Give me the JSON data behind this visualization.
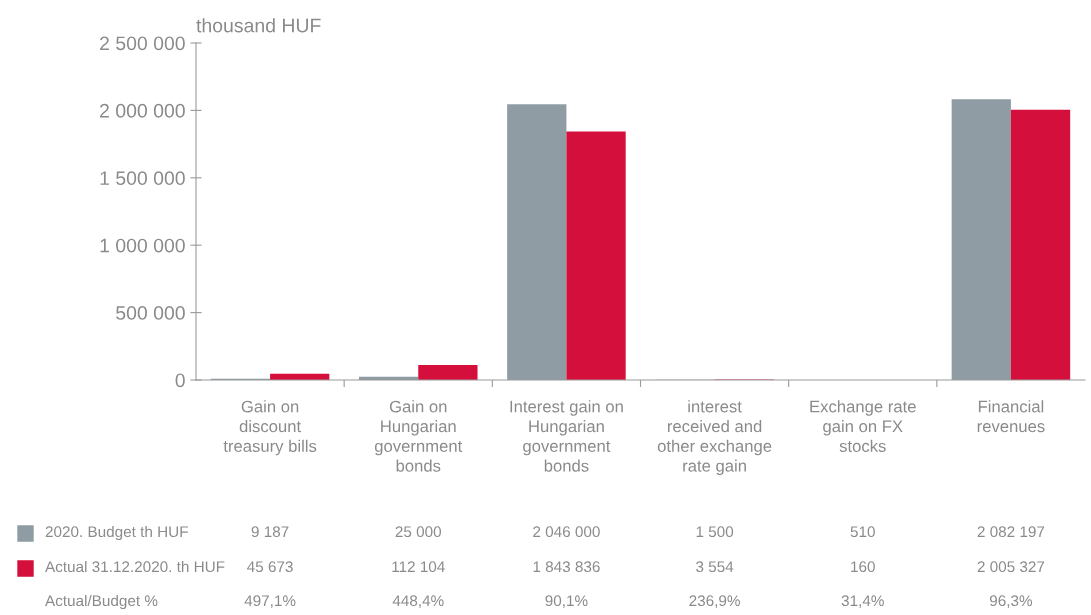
{
  "chart_data": {
    "type": "bar",
    "ylabel": "thousand HUF",
    "categories": [
      "Gain on\ndiscount\ntreasury bills",
      "Gain on\nHungarian\ngovernment\nbonds",
      "Interest gain on\nHungarian\ngovernment\nbonds",
      "interest\nreceived and\nother exchange\nrate gain",
      "Exchange rate\ngain on FX\nstocks",
      "Financial\nrevenues"
    ],
    "series": [
      {
        "name": "2020. Budget th HUF",
        "color": "#8f9ca3",
        "values": [
          9187,
          25000,
          2046000,
          1500,
          510,
          2082197
        ],
        "value_labels": [
          "9 187",
          "25 000",
          "2 046 000",
          "1 500",
          "510",
          "2 082 197"
        ]
      },
      {
        "name": "Actual 31.12.2020. th HUF",
        "color": "#d50f3b",
        "values": [
          45673,
          112104,
          1843836,
          3554,
          160,
          2005327
        ],
        "value_labels": [
          "45 673",
          "112 104",
          "1 843 836",
          "3 554",
          "160",
          "2 005 327"
        ]
      }
    ],
    "data_labels": true,
    "annotations": [
      "Actual/Budget %",
      "497,1%",
      "448,4%",
      "90,1%",
      "236,9%",
      "31,4%",
      "96,3%"
    ],
    "ylim": [
      0,
      2500000
    ],
    "yticks": [
      {
        "value": 0,
        "label": "0"
      },
      {
        "value": 500000,
        "label": "500 000"
      },
      {
        "value": 1000000,
        "label": "1 000 000"
      },
      {
        "value": 1500000,
        "label": "1 500 000"
      },
      {
        "value": 2000000,
        "label": "2 000 000"
      },
      {
        "value": 2500000,
        "label": "2 500 000"
      }
    ],
    "grid": false,
    "legend": "bottom"
  }
}
